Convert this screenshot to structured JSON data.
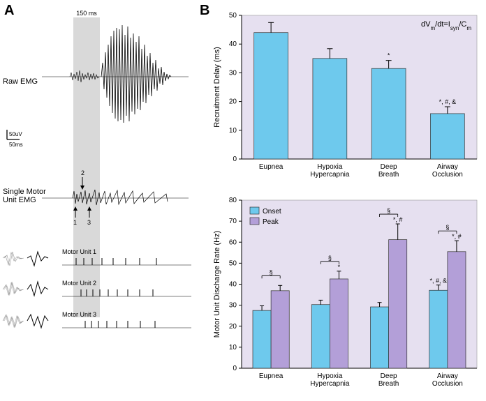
{
  "panelA": {
    "label": "A",
    "shadedRegionLabel": "150 ms",
    "rawEmgLabel": "Raw EMG",
    "smuLabel": "Single Motor\nUnit EMG",
    "scaleV": "50uV",
    "scaleT": "50ms",
    "motorUnits": [
      {
        "label": "Motor Unit 1",
        "arrow": "1"
      },
      {
        "label": "Motor Unit 2",
        "arrow": "2"
      },
      {
        "label": "Motor Unit 3",
        "arrow": "3"
      }
    ],
    "colors": {
      "shaded": "#d9d9d9",
      "trace": "#000000"
    }
  },
  "panelB": {
    "label": "B",
    "equation": "dVm/dt=Isyn/Cm",
    "categories": [
      "Eupnea",
      "Hypoxia\nHypercapnia",
      "Deep\nBreath",
      "Airway\nOcclusion"
    ],
    "topChart": {
      "ylabel": "Recruitment Delay (ms)",
      "ylim": [
        0,
        50
      ],
      "ytick_step": 10,
      "background": "#e6e0f0",
      "bar_color": "#6ec9ed",
      "values": [
        44,
        35,
        31.5,
        15.8
      ],
      "errors": [
        3.5,
        3.4,
        2.8,
        2.4
      ],
      "sig": [
        "",
        "",
        "*",
        "*, #, &"
      ]
    },
    "bottomChart": {
      "ylabel": "Motor Unit Discharge Rate (Hz)",
      "ylim": [
        0,
        80
      ],
      "ytick_step": 10,
      "background": "#e6e0f0",
      "series": [
        {
          "name": "Onset",
          "color": "#6ec9ed",
          "values": [
            27.5,
            30.3,
            29.2,
            37.1
          ],
          "errors": [
            2.2,
            2.1,
            2.1,
            2.5
          ],
          "sig": [
            "",
            "",
            "",
            "*, #, &"
          ]
        },
        {
          "name": "Peak",
          "color": "#b39fd8",
          "values": [
            36.9,
            42.5,
            61.2,
            55.5
          ],
          "errors": [
            2.5,
            3.7,
            7.5,
            5.2
          ],
          "sig": [
            "",
            "*",
            "*, #",
            "*, #"
          ]
        }
      ],
      "pair_sig": [
        "§",
        "§",
        "§",
        "§"
      ]
    }
  }
}
